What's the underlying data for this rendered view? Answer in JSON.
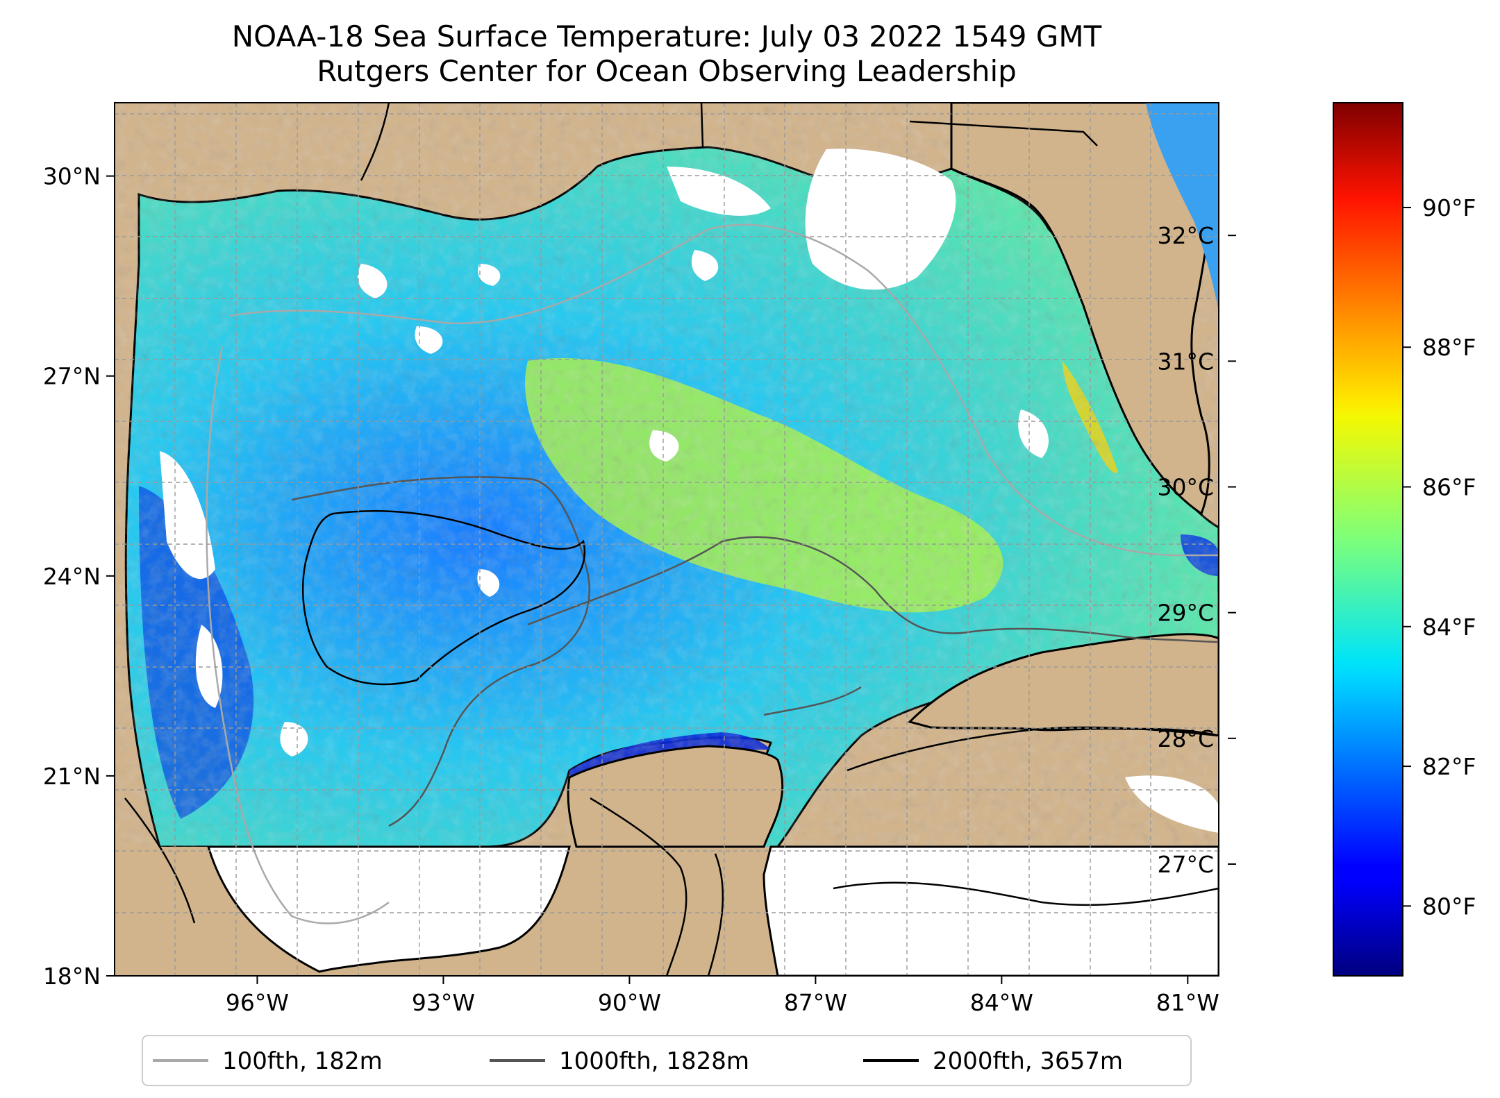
{
  "header": {
    "title": "NOAA-18 Sea Surface Temperature: July 03 2022 1549 GMT",
    "subtitle": "Rutgers Center for Ocean Observing Leadership"
  },
  "map": {
    "lat_range": [
      18,
      31.1
    ],
    "lon_range": [
      -98.3,
      -80.5
    ],
    "lat_ticks": [
      {
        "value": 30,
        "label": "30°N"
      },
      {
        "value": 27,
        "label": "27°N"
      },
      {
        "value": 24,
        "label": "24°N"
      },
      {
        "value": 21,
        "label": "21°N"
      },
      {
        "value": 18,
        "label": "18°N"
      }
    ],
    "lon_ticks": [
      {
        "value": -96,
        "label": "96°W"
      },
      {
        "value": -93,
        "label": "93°W"
      },
      {
        "value": -90,
        "label": "90°W"
      },
      {
        "value": -87,
        "label": "87°W"
      },
      {
        "value": -84,
        "label": "84°W"
      },
      {
        "value": -81,
        "label": "81°W"
      }
    ],
    "grid": true,
    "land_color": "#d2b48c",
    "no_data_color": "#ffffff",
    "no_data_south_of_lat": 19.5
  },
  "colorbar": {
    "colormap": "jet",
    "range_f": [
      79,
      91.5
    ],
    "celsius_ticks": [
      {
        "value": 32,
        "label": "32°C"
      },
      {
        "value": 31,
        "label": "31°C"
      },
      {
        "value": 30,
        "label": "30°C"
      },
      {
        "value": 29,
        "label": "29°C"
      },
      {
        "value": 28,
        "label": "28°C"
      },
      {
        "value": 27,
        "label": "27°C"
      }
    ],
    "fahrenheit_ticks": [
      {
        "value": 90,
        "label": "90°F"
      },
      {
        "value": 88,
        "label": "88°F"
      },
      {
        "value": 86,
        "label": "86°F"
      },
      {
        "value": 84,
        "label": "84°F"
      },
      {
        "value": 82,
        "label": "82°F"
      },
      {
        "value": 80,
        "label": "80°F"
      }
    ]
  },
  "legend": {
    "position": "bottom-center",
    "items": [
      {
        "label": "100fth, 182m",
        "color": "#a9a9a9"
      },
      {
        "label": "1000fth, 1828m",
        "color": "#555555"
      },
      {
        "label": "2000fth, 3657m",
        "color": "#000000"
      }
    ]
  }
}
